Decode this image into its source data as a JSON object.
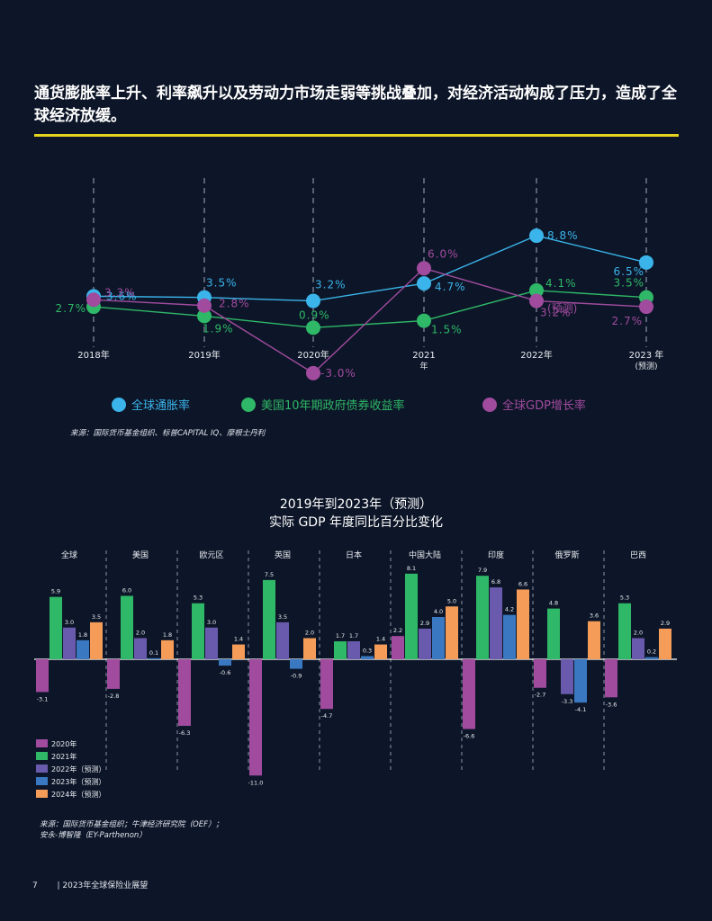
{
  "headline": "通货膨胀率上升、利率飙升以及劳动力市场走弱等挑战叠加，对经济活动构成了压力，造成了全球经济放缓。",
  "colors": {
    "inflation": "#3ab4ea",
    "bond": "#2eb867",
    "gdp": "#a04b9e",
    "accent": "#e6d31e",
    "b2020": "#a04b9e",
    "b2021": "#2eb867",
    "b2022": "#6a5aad",
    "b2023": "#3a78c2",
    "b2024": "#f59c58"
  },
  "legend": {
    "inflation": "全球通胀率",
    "bond": "美国10年期政府债券收益率",
    "gdp": "全球GDP增长率"
  },
  "source1": "来源：国际货币基金组织、标普CAPITAL IQ、摩根士丹利",
  "bar_title": [
    "2019年到2023年（预测）",
    "实际 GDP 年度同比百分比变化"
  ],
  "bar_legend": [
    "2020年",
    "2021年",
    "2022年（预测）",
    "2023年（预测）",
    "2024年（预测）"
  ],
  "source2": [
    "来源：国际货币基金组织；牛津经济研究院（OEF）；",
    "安永-博智隆（EY-Parthenon）"
  ],
  "footer": {
    "page": "7",
    "title": "| 2023年全球保险业展望"
  },
  "chart_data": [
    {
      "type": "line",
      "x": [
        "2018年",
        "2019年",
        "2020年",
        "2021年",
        "2022年",
        "2023年"
      ],
      "x_tick_labels": [
        [
          "2018年"
        ],
        [
          "2019年"
        ],
        [
          "2020年"
        ],
        [
          "2021",
          "年"
        ],
        [
          "2022年"
        ],
        [
          "2023 年",
          "(预测)"
        ]
      ],
      "series": [
        {
          "name": "全球通胀率",
          "values": [
            3.6,
            3.5,
            3.2,
            4.7,
            8.8,
            6.5
          ],
          "labels": [
            "3.6%",
            "3.5%",
            "3.2%",
            "4.7%",
            "8.8%",
            "6.5%"
          ]
        },
        {
          "name": "美国10年期政府债券收益率",
          "values": [
            2.7,
            1.9,
            0.9,
            1.5,
            4.1,
            3.5
          ],
          "labels": [
            "2.7%",
            "1.9%",
            "0.9%",
            "1.5%",
            "4.1%",
            "3.5%"
          ]
        },
        {
          "name": "全球GDP增长率",
          "values": [
            3.3,
            2.8,
            -3.0,
            6.0,
            3.2,
            2.7
          ],
          "labels": [
            "3.3%",
            "2.8%",
            "-3.0%",
            "6.0%",
            "3.2%",
            "2.7%"
          ]
        }
      ],
      "annotations": [
        "(预测)"
      ],
      "grid": "vertical-dashed"
    },
    {
      "type": "bar",
      "categories": [
        "全球",
        "美国",
        "欧元区",
        "英国",
        "日本",
        "中国大陆",
        "印度",
        "俄罗斯",
        "巴西"
      ],
      "series": [
        {
          "name": "2020年",
          "values": [
            -3.1,
            -2.8,
            -6.3,
            -11.0,
            -4.7,
            2.2,
            -6.6,
            -2.7,
            -3.6
          ]
        },
        {
          "name": "2021年",
          "values": [
            5.9,
            6.0,
            5.3,
            7.5,
            1.7,
            8.1,
            7.9,
            4.8,
            5.3
          ]
        },
        {
          "name": "2022年（预测）",
          "values": [
            3.0,
            2.0,
            3.0,
            3.5,
            1.7,
            2.9,
            6.8,
            -3.3,
            2.0
          ]
        },
        {
          "name": "2023年（预测）",
          "values": [
            1.8,
            0.1,
            -0.6,
            -0.9,
            0.3,
            4.0,
            4.2,
            -4.1,
            0.2
          ]
        },
        {
          "name": "2024年（预测）",
          "values": [
            3.5,
            1.8,
            1.4,
            2.0,
            1.4,
            5.0,
            6.6,
            3.6,
            2.9
          ]
        }
      ],
      "value_labels": [
        [
          "-3.1",
          "-2.8",
          "-6.3",
          "-11.0",
          "-4.7",
          "2.2",
          "-6.6",
          "-2.7",
          "-3.6"
        ],
        [
          "5.9",
          "6.0",
          "5.3",
          "7.5",
          "1.7",
          "8.1",
          "7.9",
          "4.8",
          "5.3"
        ],
        [
          "3.0",
          "2.0",
          "3.0",
          "3.5",
          "1.7",
          "2.9",
          "6.8",
          "-3.3",
          "2.0"
        ],
        [
          "1.8",
          "0.1",
          "-0.6",
          "-0.9",
          "0.3",
          "4.0",
          "4.2",
          "-4.1",
          "0.2"
        ],
        [
          "3.5",
          "1.8",
          "1.4",
          "2.0",
          "1.4",
          "5.0",
          "6.6",
          "3.6",
          "2.9"
        ]
      ],
      "ylim": [
        -11.5,
        8.5
      ],
      "legend": "bottom-left"
    }
  ]
}
